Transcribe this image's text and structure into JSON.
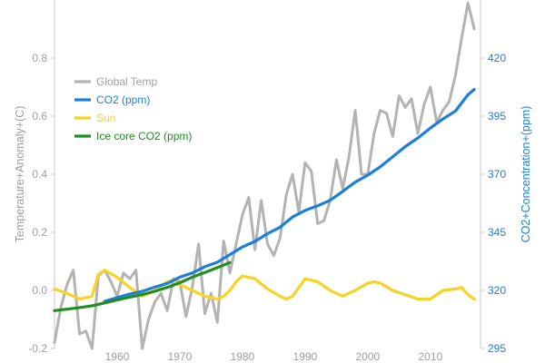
{
  "chart_data": {
    "type": "line",
    "title": "",
    "xlabel": "",
    "ylabel_left": "Temperature+Anomaly+(C)",
    "ylabel_right": "CO2+Concentration+(ppm)",
    "xlim": [
      1950,
      2018
    ],
    "ylim_left": [
      -0.2,
      1.0
    ],
    "ylim_right": [
      295,
      445
    ],
    "x_ticks": [
      1960,
      1970,
      1980,
      1990,
      2000,
      2010
    ],
    "y_left_ticks": [
      -0.2,
      0.0,
      0.2,
      0.4,
      0.6,
      0.8
    ],
    "y_right_ticks": [
      295,
      320,
      345,
      370,
      395,
      420
    ],
    "grid": false,
    "legend_position": "top-left",
    "series": [
      {
        "name": "Global Temp",
        "axis": "left",
        "color": "#b3b3b3",
        "x": [
          1950,
          1951,
          1952,
          1953,
          1954,
          1955,
          1956,
          1957,
          1958,
          1959,
          1960,
          1961,
          1962,
          1963,
          1964,
          1965,
          1966,
          1967,
          1968,
          1969,
          1970,
          1971,
          1972,
          1973,
          1974,
          1975,
          1976,
          1977,
          1978,
          1979,
          1980,
          1981,
          1982,
          1983,
          1984,
          1985,
          1986,
          1987,
          1988,
          1989,
          1990,
          1991,
          1992,
          1993,
          1994,
          1995,
          1996,
          1997,
          1998,
          1999,
          2000,
          2001,
          2002,
          2003,
          2004,
          2005,
          2006,
          2007,
          2008,
          2009,
          2010,
          2011,
          2012,
          2013,
          2014,
          2015,
          2016,
          2017
        ],
        "values": [
          -0.18,
          -0.06,
          0.02,
          0.07,
          -0.15,
          -0.14,
          -0.2,
          0.05,
          0.07,
          0.03,
          -0.02,
          0.06,
          0.04,
          0.07,
          -0.2,
          -0.1,
          -0.04,
          -0.01,
          -0.07,
          0.04,
          0.03,
          -0.09,
          0.01,
          0.16,
          -0.08,
          -0.01,
          -0.11,
          0.17,
          0.06,
          0.16,
          0.26,
          0.32,
          0.14,
          0.31,
          0.16,
          0.12,
          0.18,
          0.33,
          0.4,
          0.27,
          0.44,
          0.41,
          0.23,
          0.24,
          0.31,
          0.45,
          0.35,
          0.46,
          0.62,
          0.4,
          0.4,
          0.54,
          0.62,
          0.61,
          0.53,
          0.67,
          0.63,
          0.66,
          0.54,
          0.64,
          0.7,
          0.58,
          0.62,
          0.65,
          0.74,
          0.87,
          0.99,
          0.9
        ]
      },
      {
        "name": "CO2 (ppm)",
        "axis": "right",
        "color": "#1e7fd8",
        "x": [
          1958,
          1960,
          1962,
          1964,
          1966,
          1968,
          1970,
          1972,
          1974,
          1976,
          1978,
          1980,
          1982,
          1984,
          1986,
          1988,
          1990,
          1992,
          1994,
          1996,
          1998,
          2000,
          2002,
          2004,
          2006,
          2008,
          2010,
          2012,
          2014,
          2016,
          2017
        ],
        "values": [
          315.3,
          316.9,
          318.4,
          319.6,
          321.4,
          323.0,
          325.7,
          327.5,
          330.2,
          332.1,
          335.4,
          338.7,
          341.1,
          344.4,
          347.2,
          351.6,
          354.4,
          356.4,
          358.8,
          362.6,
          366.6,
          369.6,
          373.2,
          377.5,
          381.9,
          385.6,
          389.9,
          393.8,
          397.2,
          404.2,
          406.5
        ]
      },
      {
        "name": "Sun",
        "axis": "left",
        "color": "#f5d327",
        "x": [
          1950,
          1952,
          1954,
          1956,
          1957,
          1958,
          1960,
          1962,
          1964,
          1966,
          1968,
          1969,
          1970,
          1972,
          1974,
          1976,
          1977,
          1978,
          1979,
          1980,
          1982,
          1984,
          1986,
          1987,
          1988,
          1989,
          1990,
          1992,
          1994,
          1996,
          1997,
          1998,
          2000,
          2001,
          2002,
          2004,
          2006,
          2008,
          2010,
          2012,
          2014,
          2015,
          2016,
          2017
        ],
        "values": [
          0.005,
          -0.01,
          -0.03,
          -0.02,
          0.055,
          0.07,
          0.045,
          0.01,
          -0.02,
          0.0,
          0.03,
          0.035,
          0.02,
          0.0,
          -0.02,
          -0.03,
          -0.02,
          0.0,
          0.03,
          0.05,
          0.04,
          0.005,
          -0.02,
          -0.03,
          -0.02,
          0.01,
          0.04,
          0.03,
          0.0,
          -0.02,
          -0.01,
          0.0,
          0.025,
          0.03,
          0.025,
          0.0,
          -0.015,
          -0.03,
          -0.03,
          0.0,
          0.005,
          0.01,
          -0.015,
          -0.03
        ]
      },
      {
        "name": "Ice core CO2 (ppm)",
        "axis": "right",
        "color": "#228b22",
        "x": [
          1950,
          1952,
          1954,
          1956,
          1958,
          1960,
          1962,
          1964,
          1966,
          1968,
          1970,
          1972,
          1974,
          1976,
          1978
        ],
        "values": [
          311.3,
          311.9,
          312.6,
          313.4,
          314.6,
          315.9,
          317.1,
          318.2,
          319.6,
          321.3,
          323.3,
          325.7,
          327.7,
          329.8,
          332.0
        ]
      }
    ]
  }
}
